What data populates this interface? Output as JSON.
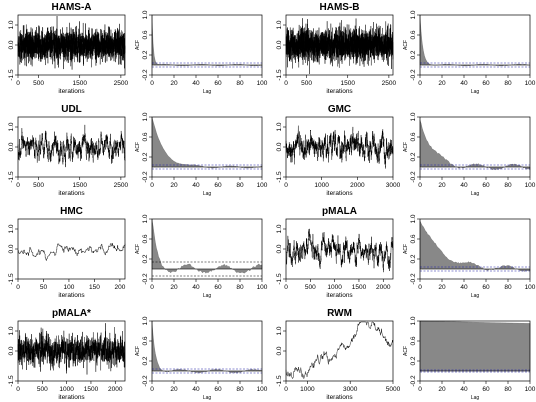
{
  "figure": {
    "ticks": {
      "trace_y": [
        "-1.5",
        "0.0",
        "1.0"
      ],
      "acf_y": [
        "-0.2",
        "0.2",
        "0.6",
        "1.0"
      ],
      "acf_x": [
        "0",
        "20",
        "40",
        "60",
        "80",
        "100"
      ]
    }
  },
  "chart_data": [
    {
      "type": "line",
      "title": "HAMS-A",
      "xlabel": "iterations",
      "ylabel": "",
      "xlim": [
        0,
        2600
      ],
      "ylim": [
        -1.5,
        1.5
      ],
      "xticks": [
        "0",
        "500",
        "1500",
        "2500"
      ],
      "n_points": 2600,
      "noise_sd": 0.38,
      "ar": 0.1,
      "seed": 11,
      "color": "#000000"
    },
    {
      "type": "bar",
      "title": "",
      "xlabel": "Lag",
      "ylabel": "ACF",
      "xlim": [
        0,
        100
      ],
      "ylim": [
        -0.2,
        1.0
      ],
      "lag0": 1.0,
      "decay_lag": 1.2,
      "wiggle": 0.015,
      "seed": 12,
      "ci": 0.04,
      "fill": "#888888",
      "ci_color": "#1a1aa6"
    },
    {
      "type": "line",
      "title": "HAMS-B",
      "xlabel": "iterations",
      "ylabel": "",
      "xlim": [
        0,
        2600
      ],
      "ylim": [
        -1.5,
        1.5
      ],
      "xticks": [
        "0",
        "500",
        "1500",
        "2500"
      ],
      "n_points": 2600,
      "noise_sd": 0.4,
      "ar": 0.1,
      "seed": 21,
      "color": "#000000"
    },
    {
      "type": "bar",
      "title": "",
      "xlabel": "Lag",
      "ylabel": "ACF",
      "xlim": [
        0,
        100
      ],
      "ylim": [
        -0.2,
        1.0
      ],
      "lag0": 1.0,
      "decay_lag": 2.5,
      "wiggle": 0.015,
      "seed": 22,
      "ci": 0.04,
      "fill": "#888888",
      "ci_color": "#1a1aa6"
    },
    {
      "type": "line",
      "title": "UDL",
      "xlabel": "iterations",
      "ylabel": "",
      "xlim": [
        0,
        2600
      ],
      "ylim": [
        -1.5,
        1.5
      ],
      "xticks": [
        "0",
        "500",
        "1500",
        "2500"
      ],
      "n_points": 2600,
      "noise_sd": 0.12,
      "ar": 0.93,
      "seed": 31,
      "color": "#000000"
    },
    {
      "type": "bar",
      "title": "",
      "xlabel": "Lag",
      "ylabel": "ACF",
      "xlim": [
        0,
        100
      ],
      "ylim": [
        -0.2,
        1.0
      ],
      "lag0": 1.0,
      "decay_lag": 10,
      "wiggle": 0.02,
      "seed": 32,
      "ci": 0.04,
      "fill": "#888888",
      "ci_color": "#1a1aa6"
    },
    {
      "type": "line",
      "title": "GMC",
      "xlabel": "iterations",
      "ylabel": "",
      "xlim": [
        0,
        3000
      ],
      "ylim": [
        -1.5,
        1.5
      ],
      "xticks": [
        "0",
        "1000",
        "2000",
        "3000"
      ],
      "n_points": 3000,
      "noise_sd": 0.12,
      "ar": 0.94,
      "seed": 41,
      "color": "#000000"
    },
    {
      "type": "bar",
      "title": "",
      "xlabel": "Lag",
      "ylabel": "ACF",
      "xlim": [
        0,
        100
      ],
      "ylim": [
        -0.2,
        1.0
      ],
      "lag0": 1.0,
      "decay_lag": 11,
      "wiggle": 0.05,
      "seed": 42,
      "ci": 0.04,
      "fill": "#888888",
      "ci_color": "#1a1aa6"
    },
    {
      "type": "line",
      "title": "HMC",
      "xlabel": "iterations",
      "ylabel": "",
      "xlim": [
        0,
        210
      ],
      "ylim": [
        -1.5,
        1.5
      ],
      "xticks": [
        "0",
        "50",
        "100",
        "150",
        "200"
      ],
      "n_points": 210,
      "noise_sd": 0.08,
      "ar": 0.95,
      "seed": 51,
      "steps": true,
      "color": "#000000"
    },
    {
      "type": "bar",
      "title": "",
      "xlabel": "Lag",
      "ylabel": "ACF",
      "xlim": [
        0,
        100
      ],
      "ylim": [
        -0.2,
        1.0
      ],
      "lag0": 1.0,
      "decay_lag": 4,
      "wiggle": 0.08,
      "seed": 52,
      "ci": 0.14,
      "fill": "#888888",
      "ci_color": "#000000"
    },
    {
      "type": "line",
      "title": "pMALA",
      "xlabel": "iterations",
      "ylabel": "",
      "xlim": [
        0,
        2200
      ],
      "ylim": [
        -1.5,
        1.5
      ],
      "xticks": [
        "0",
        "500",
        "1000",
        "1500",
        "2000"
      ],
      "n_points": 2200,
      "noise_sd": 0.12,
      "ar": 0.95,
      "seed": 61,
      "color": "#000000"
    },
    {
      "type": "bar",
      "title": "",
      "xlabel": "Lag",
      "ylabel": "ACF",
      "xlim": [
        0,
        100
      ],
      "ylim": [
        -0.2,
        1.0
      ],
      "lag0": 1.0,
      "decay_lag": 18,
      "wiggle": 0.05,
      "seed": 62,
      "ci": 0.04,
      "fill": "#888888",
      "ci_color": "#1a1aa6"
    },
    {
      "type": "line",
      "title": "pMALA*",
      "xlabel": "iterations",
      "ylabel": "",
      "xlim": [
        0,
        2200
      ],
      "ylim": [
        -1.5,
        1.5
      ],
      "xticks": [
        "0",
        "500",
        "1000",
        "1500",
        "2000"
      ],
      "n_points": 2200,
      "noise_sd": 0.3,
      "ar": 0.5,
      "seed": 71,
      "color": "#000000"
    },
    {
      "type": "bar",
      "title": "",
      "xlabel": "Lag",
      "ylabel": "ACF",
      "xlim": [
        0,
        100
      ],
      "ylim": [
        -0.2,
        1.0
      ],
      "lag0": 1.0,
      "decay_lag": 3,
      "wiggle": 0.03,
      "seed": 72,
      "ci": 0.04,
      "fill": "#888888",
      "ci_color": "#1a1aa6"
    },
    {
      "type": "line",
      "title": "RWM",
      "xlabel": "iterations",
      "ylabel": "",
      "xlim": [
        0,
        5000
      ],
      "ylim": [
        -1.5,
        1.5
      ],
      "xticks": [
        "0",
        "1000",
        "3000",
        "5000"
      ],
      "n_points": 500,
      "noise_sd": 0.07,
      "ar": 0.998,
      "seed": 81,
      "trend": [
        [
          0,
          -1.1
        ],
        [
          800,
          -0.9
        ],
        [
          1500,
          -0.3
        ],
        [
          2200,
          -0.5
        ],
        [
          3000,
          0.1
        ],
        [
          3600,
          0.8
        ],
        [
          4200,
          0.6
        ],
        [
          4700,
          0.1
        ],
        [
          5000,
          0.2
        ]
      ],
      "color": "#000000"
    },
    {
      "type": "bar",
      "title": "",
      "xlabel": "Lag",
      "ylabel": "ACF",
      "xlim": [
        0,
        100
      ],
      "ylim": [
        -0.2,
        1.0
      ],
      "lag0": 1.0,
      "decay_lag": 2000,
      "wiggle": 0.0,
      "seed": 82,
      "ci": 0.02,
      "fill": "#888888",
      "ci_color": "#1a1aa6"
    }
  ]
}
